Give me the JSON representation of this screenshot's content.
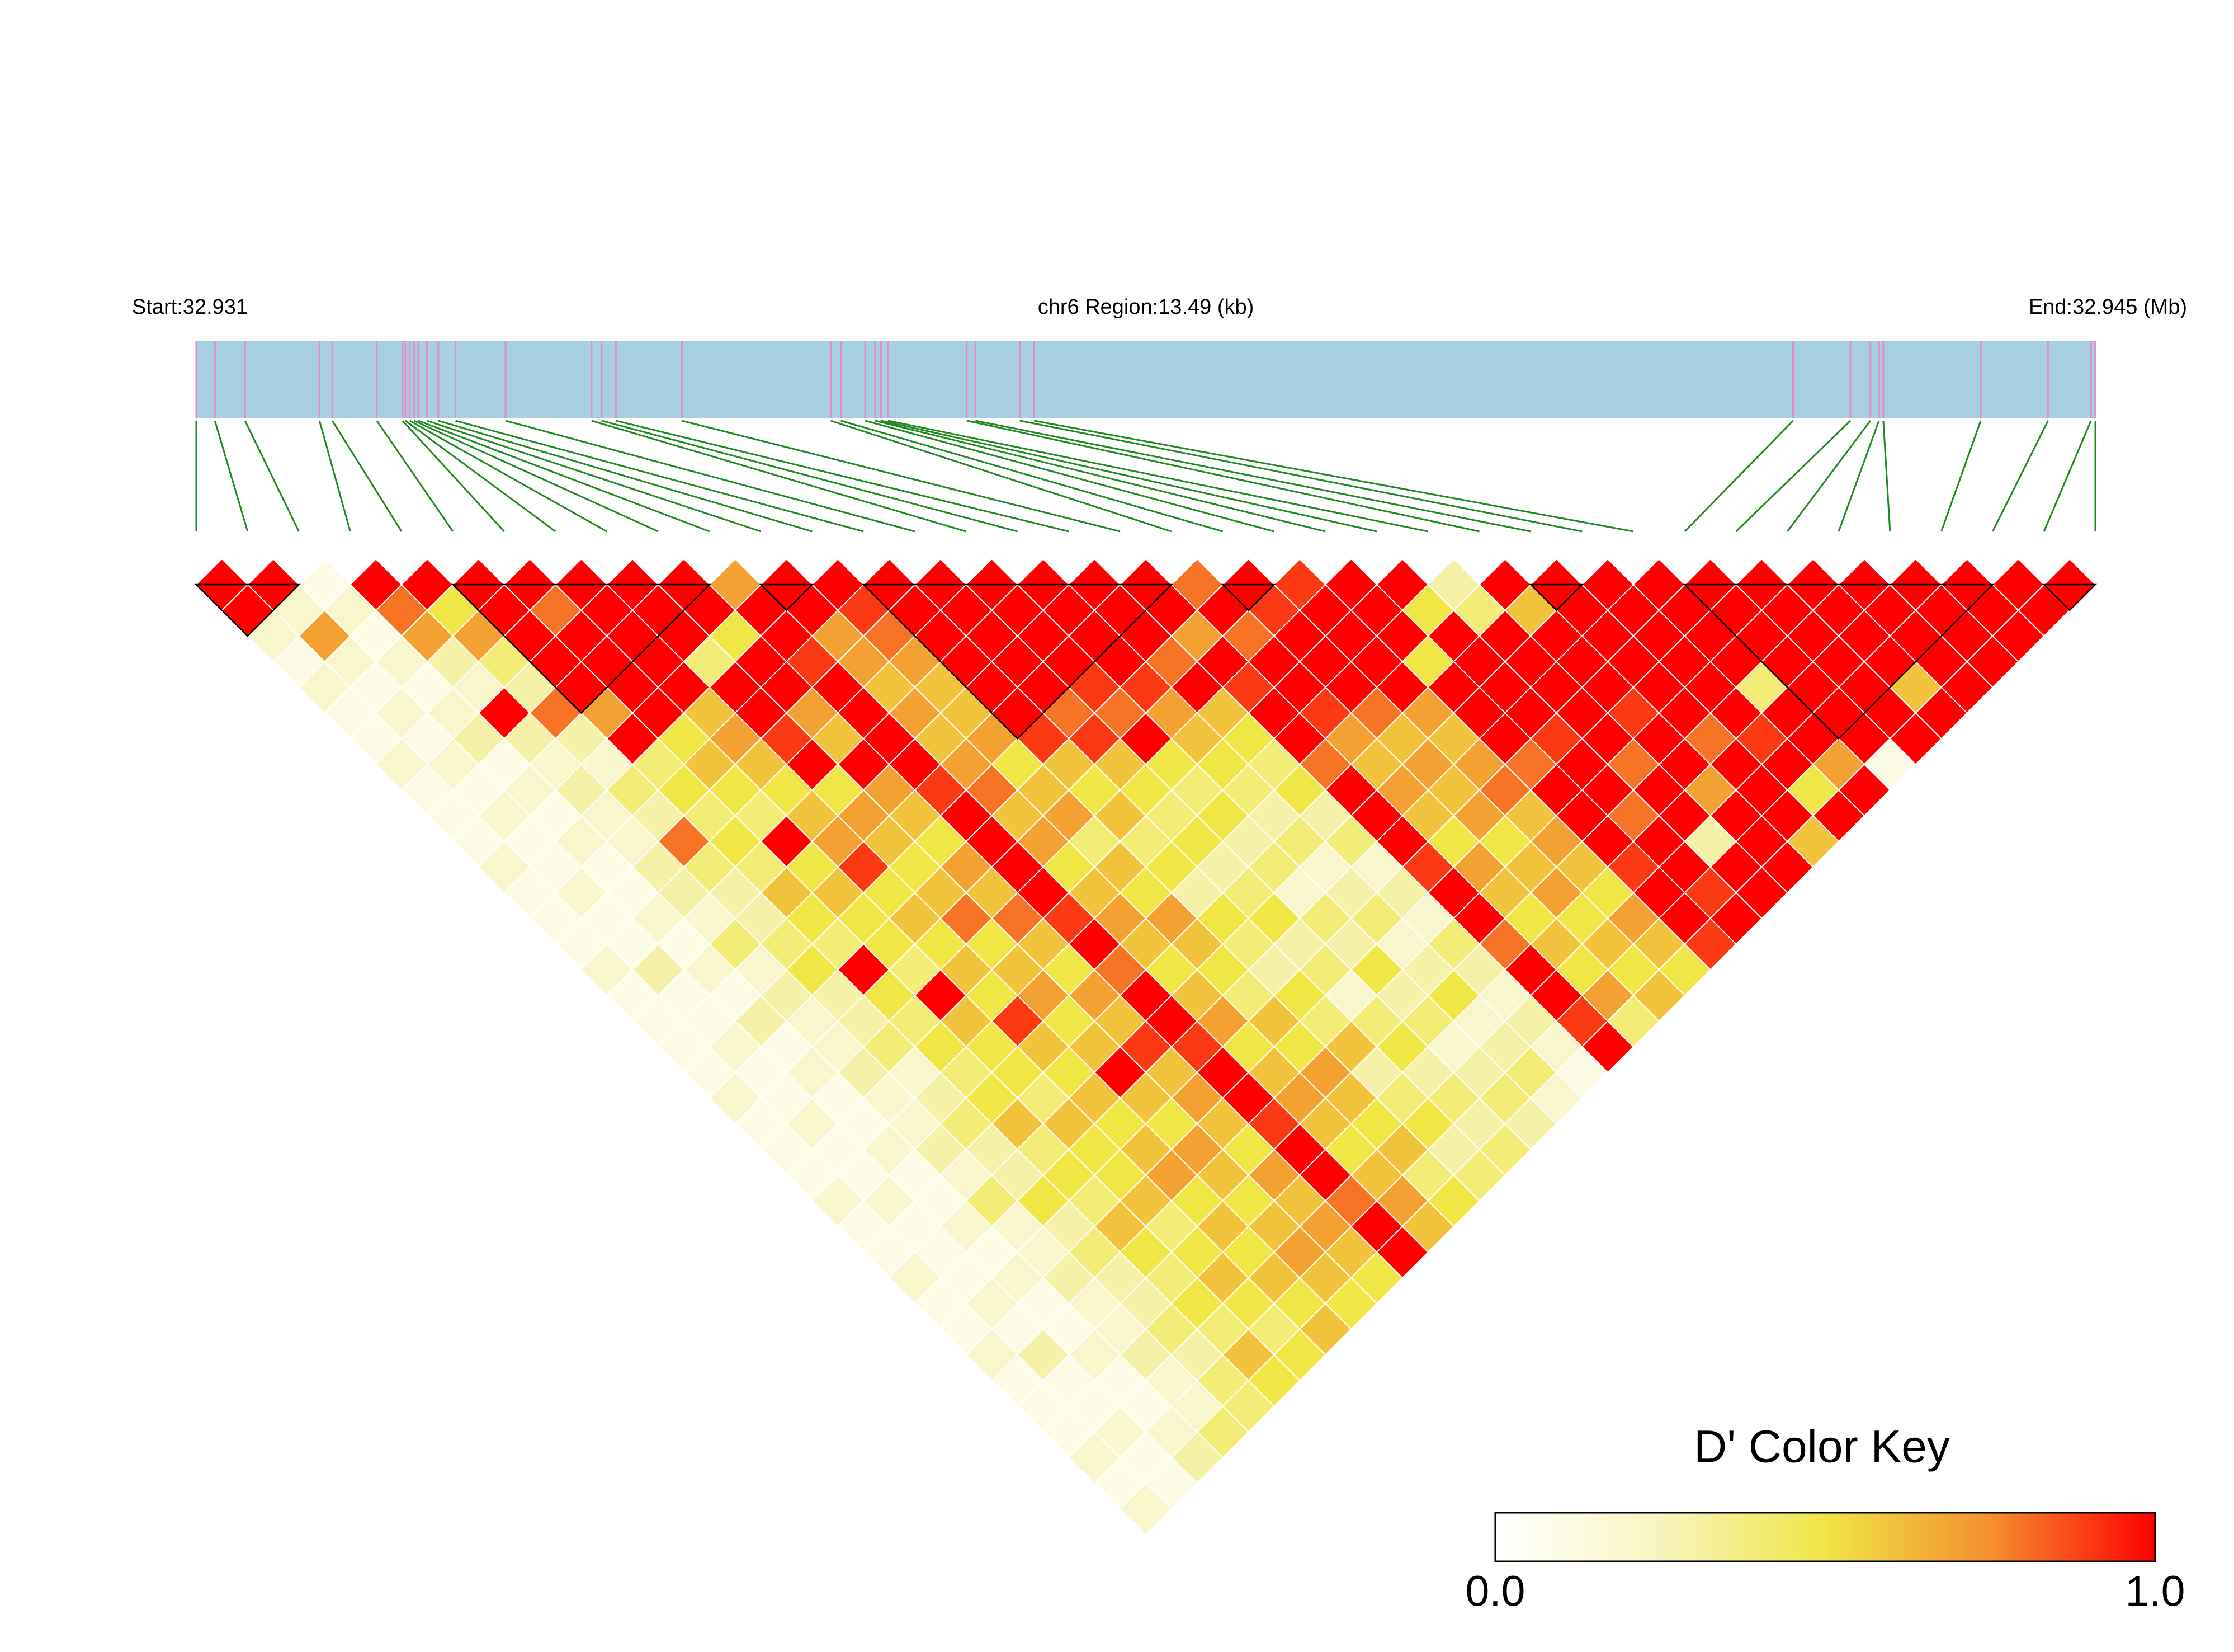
{
  "chart_data": {
    "type": "ld_heatmap",
    "start_label": "Start:32.931",
    "region_label": "chr6 Region:13.49 (kb)",
    "end_label": "End:32.945 (Mb)",
    "xlim": [
      0,
      13.49
    ],
    "snp_positions": [
      0,
      0.132,
      0.346,
      0.875,
      0.966,
      1.282,
      1.465,
      1.485,
      1.516,
      1.546,
      1.577,
      1.638,
      1.719,
      1.841,
      2.197,
      2.808,
      2.879,
      2.981,
      3.449,
      4.507,
      4.578,
      4.751,
      4.822,
      4.863,
      4.914,
      5.473,
      5.534,
      5.85,
      5.951,
      11.343,
      11.75,
      11.892,
      11.953,
      11.984,
      12.676,
      13.154,
      13.459,
      13.49
    ],
    "bar_color": "#a9cfe2",
    "tick_color": "#e18ccb",
    "link_color": "#1f8a1f",
    "colors": [
      "#ffffff",
      "#f8f4c0",
      "#f0e646",
      "#f59030",
      "#ff0000"
    ],
    "d_prime": [
      [
        1,
        1,
        0.2,
        0.1,
        0.2,
        0.1,
        0.1,
        0.2,
        0.1,
        0.1,
        0.1,
        0.2,
        0.1,
        0.1,
        0.1,
        0.2,
        0.1,
        0.1,
        0.1,
        0.1,
        0.2,
        0.1,
        0.1,
        0.1,
        0.2,
        0.1,
        0.1,
        0.2,
        0.1,
        0.1,
        0.2,
        0.1,
        0.1,
        0.1,
        0.2,
        0.1,
        0.2
      ],
      [
        1,
        0.2,
        0.7,
        0.2,
        0.1,
        0.2,
        0.1,
        0.2,
        0.1,
        0.2,
        0.1,
        0.1,
        0.2,
        0.1,
        0.1,
        0.3,
        0.1,
        0.1,
        0.2,
        0.1,
        0.1,
        0.2,
        0.1,
        0.1,
        0.2,
        0.1,
        0.1,
        0.1,
        0.2,
        0.1,
        0.3,
        0.1,
        0.1,
        0.2,
        0.1,
        0.1
      ],
      [
        0.1,
        0.2,
        0.1,
        0.2,
        0.1,
        0.2,
        0.3,
        0.1,
        0.2,
        0.1,
        0.2,
        0.1,
        0.1,
        0.2,
        0.1,
        0.2,
        0.1,
        0.3,
        0.1,
        0.2,
        0.1,
        0.1,
        0.2,
        0.1,
        0.1,
        0.2,
        0.1,
        0.2,
        0.1,
        0.1,
        0.2,
        0.1,
        0.1,
        0.2,
        0.3
      ],
      [
        1,
        0.8,
        0.7,
        0.3,
        0.2,
        1,
        0.3,
        0.2,
        0.3,
        0.2,
        0.2,
        0.3,
        0.3,
        0.2,
        0.4,
        0.2,
        0.3,
        0.2,
        0.2,
        0.3,
        0.2,
        0.2,
        0.3,
        0.2,
        0.4,
        0.2,
        0.2,
        0.3,
        0.2,
        0.2,
        0.3,
        0.2,
        0.2,
        0.4
      ],
      [
        1,
        0.5,
        0.7,
        0.4,
        0.3,
        0.8,
        0.3,
        0.2,
        0.4,
        0.3,
        0.8,
        0.4,
        0.3,
        0.3,
        0.4,
        0.5,
        0.3,
        0.3,
        0.4,
        0.2,
        0.3,
        0.4,
        0.3,
        0.3,
        0.5,
        0.3,
        0.4,
        0.3,
        0.3,
        0.4,
        0.3,
        0.4,
        0.4
      ],
      [
        1,
        1,
        1,
        1,
        1,
        0.7,
        1,
        0.4,
        0.5,
        0.4,
        0.5,
        0.4,
        0.6,
        0.5,
        0.4,
        1,
        0.5,
        0.4,
        0.5,
        0.4,
        0.5,
        0.6,
        0.4,
        0.5,
        0.4,
        0.6,
        0.5,
        0.4,
        0.5,
        0.4,
        0.6,
        0.5
      ],
      [
        1,
        0.8,
        1,
        1,
        1,
        1,
        0.5,
        0.6,
        0.5,
        0.4,
        1,
        0.5,
        0.6,
        0.5,
        0.5,
        0.4,
        1,
        0.6,
        0.5,
        0.5,
        0.4,
        0.6,
        0.5,
        0.5,
        0.6,
        0.4,
        0.5,
        0.6,
        0.5,
        0.4,
        0.5
      ],
      [
        1,
        1,
        1,
        1,
        1,
        0.6,
        0.7,
        0.6,
        0.5,
        0.6,
        0.7,
        0.9,
        0.5,
        0.6,
        0.5,
        0.6,
        0.5,
        0.9,
        0.6,
        0.5,
        0.6,
        0.5,
        0.6,
        0.7,
        0.5,
        0.6,
        0.5,
        0.6,
        0.5,
        0.6
      ],
      [
        1,
        1,
        1,
        0.4,
        1,
        1,
        0.9,
        1,
        0.5,
        0.7,
        0.6,
        0.5,
        0.6,
        0.8,
        0.5,
        0.6,
        0.7,
        0.5,
        0.6,
        1,
        0.6,
        0.5,
        0.7,
        0.6,
        0.5,
        0.6,
        0.7,
        0.6,
        0.5
      ],
      [
        1,
        1,
        0.5,
        1,
        1,
        0.7,
        0.6,
        1,
        0.7,
        0.6,
        0.5,
        0.7,
        0.6,
        0.8,
        0.6,
        0.5,
        0.7,
        0.6,
        0.9,
        0.6,
        0.7,
        0.6,
        0.5,
        0.7,
        0.6,
        0.7,
        0.6,
        0.5
      ],
      [
        0.7,
        1,
        1,
        0.9,
        1,
        1,
        1,
        1,
        0.9,
        1,
        1,
        1,
        1,
        0.9,
        1,
        0.8,
        1,
        1,
        0.9,
        1,
        1,
        0.9,
        1,
        1,
        0.8,
        1,
        1
      ],
      [
        1,
        1,
        0.7,
        0.7,
        0.6,
        0.7,
        0.6,
        0.7,
        0.8,
        0.6,
        0.7,
        0.5,
        0.6,
        0.7,
        0.6,
        0.5,
        0.6,
        0.7,
        0.5,
        0.6,
        0.7,
        0.6,
        0.5,
        0.6,
        0.7,
        0.6
      ],
      [
        1,
        0.9,
        0.8,
        0.7,
        0.6,
        0.6,
        0.7,
        0.5,
        0.6,
        0.7,
        0.4,
        0.6,
        0.5,
        0.7,
        0.6,
        0.5,
        0.4,
        0.6,
        0.5,
        0.7,
        0.6,
        0.5,
        0.6,
        0.4,
        0.5
      ],
      [
        1,
        1,
        1,
        1,
        1,
        1,
        0.9,
        0.6,
        0.5,
        0.6,
        0.4,
        0.5,
        0.3,
        0.5,
        0.4,
        0.3,
        0.5,
        0.4,
        0.6,
        0.3,
        0.4,
        0.5,
        0.3,
        0.4
      ],
      [
        1,
        1,
        1,
        1,
        1,
        0.8,
        0.9,
        0.6,
        0.5,
        0.4,
        0.5,
        0.3,
        0.4,
        0.5,
        0.3,
        0.4,
        0.2,
        0.4,
        0.5,
        0.3,
        0.4,
        0.3,
        0.4
      ],
      [
        1,
        1,
        1,
        1,
        0.9,
        0.8,
        1,
        0.5,
        0.4,
        0.5,
        0.3,
        0.4,
        0.2,
        0.4,
        0.3,
        0.5,
        0.3,
        0.4,
        0.2,
        0.3,
        0.4,
        0.3
      ],
      [
        1,
        1,
        1,
        1,
        0.9,
        0.7,
        0.6,
        0.5,
        0.4,
        0.3,
        0.4,
        0.2,
        0.3,
        0.4,
        0.2,
        0.3,
        0.5,
        0.2,
        0.3,
        0.4,
        0.2
      ],
      [
        1,
        1,
        1,
        0.8,
        1,
        0.6,
        0.5,
        0.4,
        0.5,
        0.3,
        0.4,
        0.2,
        0.3,
        0.2,
        0.4,
        0.3,
        0.2,
        0.3,
        0.2,
        0.1
      ],
      [
        1,
        1,
        0.7,
        1,
        0.9,
        1,
        1,
        0.8,
        1,
        1,
        1,
        0.9,
        1,
        1,
        0.8,
        1,
        1,
        0.9,
        1
      ],
      [
        0.8,
        1,
        0.8,
        1,
        1,
        0.9,
        0.7,
        0.6,
        0.7,
        0.6,
        0.5,
        0.7,
        0.6,
        0.5,
        0.6,
        0.5,
        0.7,
        0.4
      ],
      [
        1,
        0.9,
        1,
        1,
        1,
        0.8,
        0.6,
        0.7,
        0.6,
        0.7,
        0.5,
        0.6,
        0.7,
        0.5,
        0.6,
        0.5,
        0.6
      ],
      [
        0.9,
        1,
        1,
        1,
        1,
        0.7,
        0.6,
        0.7,
        0.8,
        0.6,
        0.7,
        0.6,
        0.5,
        0.7,
        0.6,
        0.5
      ],
      [
        1,
        1,
        1,
        0.5,
        1,
        1,
        1,
        0.8,
        1,
        1,
        1,
        0.9,
        1,
        1,
        0.9
      ],
      [
        1,
        0.5,
        1,
        1,
        1,
        1,
        0.9,
        1,
        1,
        0.8,
        1,
        1,
        0.9,
        1
      ],
      [
        0.3,
        0.4,
        1,
        1,
        1,
        1,
        1,
        0.8,
        1,
        1,
        0.3,
        1,
        1
      ],
      [
        1,
        0.6,
        1,
        1,
        1,
        0.9,
        1,
        1,
        0.7,
        1,
        1,
        1
      ],
      [
        1,
        1,
        1,
        1,
        1,
        1,
        0.8,
        1,
        1,
        1,
        0.6
      ],
      [
        1,
        1,
        1,
        1,
        1,
        1,
        0.9,
        1,
        0.5,
        1
      ],
      [
        1,
        1,
        1,
        1,
        0.4,
        1,
        1,
        0.7,
        1
      ],
      [
        1,
        1,
        1,
        1,
        1,
        1,
        1,
        0.1
      ],
      [
        1,
        1,
        1,
        1,
        1,
        1,
        1
      ],
      [
        1,
        1,
        1,
        1,
        0.6,
        1
      ],
      [
        1,
        1,
        1,
        1,
        1
      ],
      [
        1,
        1,
        1,
        1
      ],
      [
        1,
        1,
        1
      ],
      [
        1,
        1
      ],
      [
        1
      ]
    ],
    "blocks": [
      [
        0,
        2
      ],
      [
        5,
        10
      ],
      [
        11,
        12
      ],
      [
        13,
        19
      ],
      [
        20,
        21
      ],
      [
        26,
        27
      ],
      [
        29,
        35
      ],
      [
        36,
        37
      ]
    ],
    "key_title": "D' Color Key",
    "key_lim": [
      0,
      1
    ],
    "key_ticks": [
      {
        "value": 0,
        "label": "0.0"
      },
      {
        "value": 1,
        "label": "1.0"
      }
    ]
  }
}
